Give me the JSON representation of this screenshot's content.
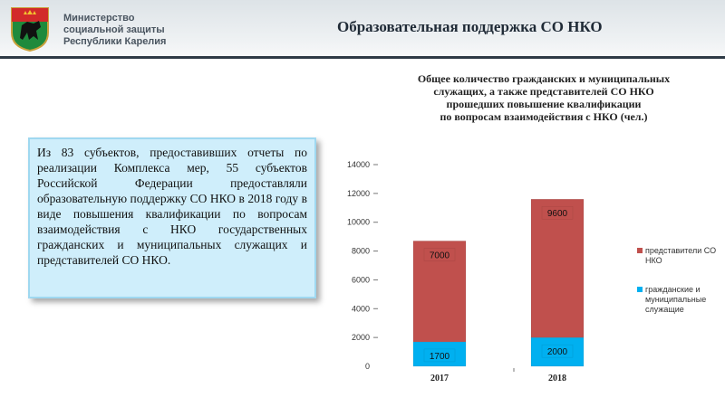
{
  "header": {
    "org_lines": [
      "Министерство",
      "социальной защиты",
      "Республики Карелия"
    ],
    "title": "Образовательная поддержка СО НКО"
  },
  "textbox": {
    "text": "Из 83 субъектов, предоставивших отчеты по реализации Комплекса мер, 55 субъектов Российской Федерации предоставляли образовательную поддержку СО НКО в 2018 году в виде повышения квалификации по вопросам взаимодействия с НКО государственных гражданских и муниципальных служащих и представителей СО НКО."
  },
  "colors": {
    "series_nko": "#c0504d",
    "series_civil": "#00b0f0",
    "textbox_bg": "#cfeefb",
    "header_rule": "#2e3a45"
  },
  "chart_data": {
    "type": "bar",
    "stacked": true,
    "title_lines": [
      "Общее количество гражданских и муниципальных",
      "служащих, а также представителей СО НКО",
      "прошедших повышение квалификации",
      "по вопросам взаимодействия с НКО (чел.)"
    ],
    "categories": [
      "2017",
      "2018"
    ],
    "series": [
      {
        "name": "гражданские и муниципальные служащие",
        "values": [
          1700,
          2000
        ]
      },
      {
        "name": "представители СО НКО",
        "values": [
          7000,
          9600
        ]
      }
    ],
    "ylim": [
      0,
      14000
    ],
    "yticks": [
      0,
      2000,
      4000,
      6000,
      8000,
      10000,
      12000,
      14000
    ],
    "ytick_labels": [
      "0",
      "2000",
      "4000",
      "6000",
      "8000",
      "10000",
      "12000",
      "14000"
    ],
    "legend_position": "right",
    "grid": false
  }
}
